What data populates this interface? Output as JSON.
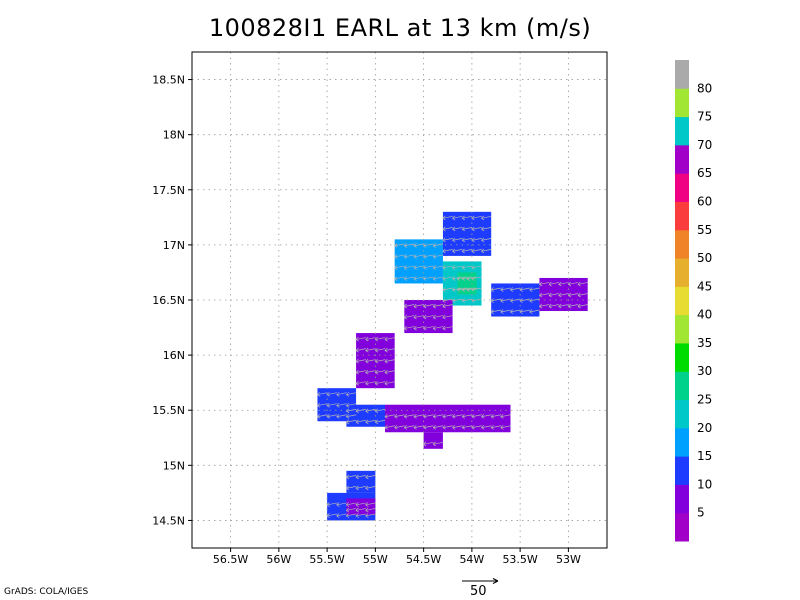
{
  "title": "100828I1 EARL at 13 km (m/s)",
  "credit": "GrADS: COLA/IGES",
  "reference_vector": {
    "label": "50"
  },
  "chart_data": {
    "type": "heatmap",
    "title": "100828I1 EARL at 13 km (m/s)",
    "x_axis": {
      "ticks": [
        "56.5W",
        "56W",
        "55.5W",
        "55W",
        "54.5W",
        "54W",
        "53.5W",
        "53W"
      ],
      "values": [
        -56.5,
        -56,
        -55.5,
        -55,
        -54.5,
        -54,
        -53.5,
        -53
      ],
      "range": [
        -56.9,
        -52.6
      ],
      "grid": true
    },
    "y_axis": {
      "ticks": [
        "14.5N",
        "15N",
        "15.5N",
        "16N",
        "16.5N",
        "17N",
        "17.5N",
        "18N",
        "18.5N"
      ],
      "values": [
        14.5,
        15,
        15.5,
        16,
        16.5,
        17,
        17.5,
        18,
        18.5
      ],
      "range": [
        14.25,
        18.75
      ],
      "grid": true
    },
    "colorbar": {
      "labels": [
        "5",
        "10",
        "15",
        "20",
        "25",
        "30",
        "35",
        "40",
        "45",
        "50",
        "55",
        "60",
        "65",
        "70",
        "75",
        "80"
      ],
      "colors": [
        "#a000c8",
        "#8200dc",
        "#1e3cff",
        "#00a0ff",
        "#00c8c8",
        "#00d28c",
        "#00dc00",
        "#a0e632",
        "#e6dc32",
        "#e6af2d",
        "#f08228",
        "#fa3c3c",
        "#f00082",
        "#a000c8",
        "#00c8c8",
        "#a0e632",
        "#aaaaaa"
      ]
    },
    "regions": [
      {
        "lon": [
          -54.8,
          -54.3
        ],
        "lat": [
          16.65,
          17.05
        ],
        "speed": 17.5
      },
      {
        "lon": [
          -54.3,
          -53.9
        ],
        "lat": [
          16.45,
          16.85
        ],
        "speed": 22.5
      },
      {
        "lon": [
          -54.15,
          -53.95
        ],
        "lat": [
          16.55,
          16.75
        ],
        "speed": 27.5
      },
      {
        "lon": [
          -54.3,
          -53.8
        ],
        "lat": [
          16.9,
          17.3
        ],
        "speed": 12.5
      },
      {
        "lon": [
          -53.8,
          -53.3
        ],
        "lat": [
          16.35,
          16.65
        ],
        "speed": 12.5
      },
      {
        "lon": [
          -53.3,
          -52.8
        ],
        "lat": [
          16.4,
          16.7
        ],
        "speed": 7.5
      },
      {
        "lon": [
          -54.7,
          -54.2
        ],
        "lat": [
          16.2,
          16.5
        ],
        "speed": 7.5
      },
      {
        "lon": [
          -55.2,
          -54.8
        ],
        "lat": [
          15.7,
          16.2
        ],
        "speed": 7.5
      },
      {
        "lon": [
          -55.6,
          -55.2
        ],
        "lat": [
          15.4,
          15.7
        ],
        "speed": 12.5
      },
      {
        "lon": [
          -55.3,
          -54.9
        ],
        "lat": [
          15.35,
          15.55
        ],
        "speed": 12.5
      },
      {
        "lon": [
          -54.9,
          -53.6
        ],
        "lat": [
          15.3,
          15.55
        ],
        "speed": 7.5
      },
      {
        "lon": [
          -54.5,
          -54.3
        ],
        "lat": [
          15.15,
          15.3
        ],
        "speed": 7.5
      },
      {
        "lon": [
          -55.5,
          -55.0
        ],
        "lat": [
          14.5,
          14.75
        ],
        "speed": 12.5
      },
      {
        "lon": [
          -55.3,
          -55.0
        ],
        "lat": [
          14.55,
          14.7
        ],
        "speed": 7.5
      },
      {
        "lon": [
          -55.3,
          -55.0
        ],
        "lat": [
          14.75,
          14.95
        ],
        "speed": 12.5
      }
    ]
  }
}
